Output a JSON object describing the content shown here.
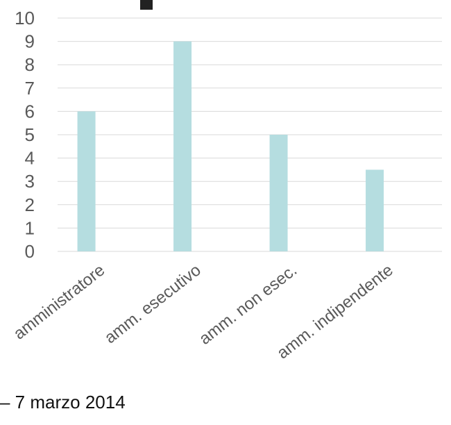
{
  "chart_data": {
    "type": "bar",
    "categories": [
      "amministratore",
      "amm. esecutivo",
      "amm. non esec.",
      "amm. indipendente"
    ],
    "values": [
      6,
      9,
      5,
      3.5
    ],
    "ylim": [
      0,
      10
    ],
    "yticks": [
      0,
      1,
      2,
      3,
      4,
      5,
      6,
      7,
      8,
      9,
      10
    ],
    "grid": true,
    "legend": "none",
    "colors": {
      "bar": "#b5dde0",
      "grid": "#d9d9d9",
      "text": "#595959"
    }
  },
  "footer": {
    "text": "– 7 marzo 2014"
  }
}
